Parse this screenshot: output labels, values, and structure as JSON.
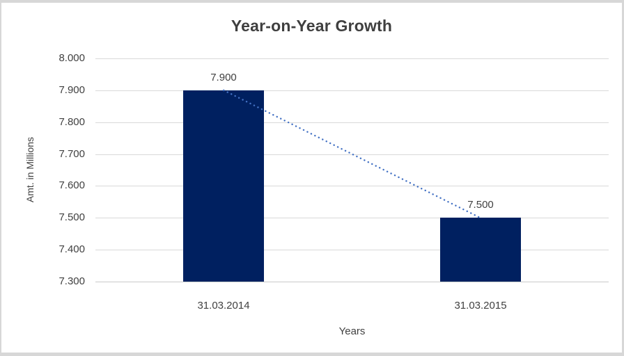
{
  "window": {
    "background": "#ffffff",
    "border_color": "#d7d7d7"
  },
  "chart_data": {
    "type": "bar",
    "title": "Year-on-Year Growth",
    "xlabel": "Years",
    "ylabel": "Amt. in Millions",
    "categories": [
      "31.03.2014",
      "31.03.2015"
    ],
    "values": [
      7.9,
      7.5
    ],
    "data_labels": [
      "7.900",
      "7.500"
    ],
    "ylim": [
      7.3,
      8.0
    ],
    "ytick_step": 0.1,
    "ytick_labels": [
      "8.000",
      "7.900",
      "7.800",
      "7.700",
      "7.600",
      "7.500",
      "7.400",
      "7.300"
    ],
    "grid": true,
    "legend": "none",
    "bar_color": "#002060",
    "gridline_color": "#d9d9d9",
    "axis_line_color": "#c9c9c9",
    "text_color": "#404040",
    "trendline": {
      "style": "dotted",
      "color": "#4472c4",
      "from": [
        0,
        7.9
      ],
      "to": [
        1,
        7.5
      ]
    }
  }
}
